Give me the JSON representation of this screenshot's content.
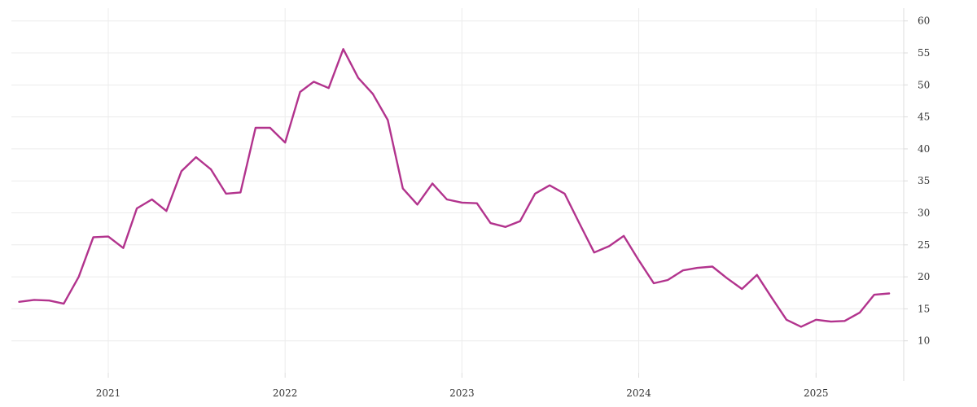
{
  "chart_data": {
    "type": "line",
    "title": "",
    "xlabel": "",
    "ylabel": "",
    "x_ticks": [
      "2021",
      "2022",
      "2023",
      "2024",
      "2025"
    ],
    "y_ticks": [
      10,
      15,
      20,
      25,
      30,
      35,
      40,
      45,
      50,
      55,
      60
    ],
    "ylim": [
      5,
      62
    ],
    "xlim": [
      "2020-06-15",
      "2025-07-01"
    ],
    "grid": true,
    "legend": "none",
    "colors": {
      "line": "#b2338d",
      "grid": "#ececec"
    },
    "series": [
      {
        "x": [
          "2020-07",
          "2020-08",
          "2020-09",
          "2020-10",
          "2020-11",
          "2020-12",
          "2021-01",
          "2021-02",
          "2021-03",
          "2021-04",
          "2021-05",
          "2021-06",
          "2021-07",
          "2021-08",
          "2021-09",
          "2021-10",
          "2021-11",
          "2021-12",
          "2022-01",
          "2022-02",
          "2022-03",
          "2022-04",
          "2022-05",
          "2022-06",
          "2022-07",
          "2022-08",
          "2022-09",
          "2022-10",
          "2022-11",
          "2022-12",
          "2023-01",
          "2023-02",
          "2023-03",
          "2023-04",
          "2023-05",
          "2023-06",
          "2023-07",
          "2023-08",
          "2023-09",
          "2023-10",
          "2023-11",
          "2023-12",
          "2024-01",
          "2024-02",
          "2024-03",
          "2024-04",
          "2024-05",
          "2024-06",
          "2024-07",
          "2024-08",
          "2024-09",
          "2024-10",
          "2024-11",
          "2024-12",
          "2025-01",
          "2025-02",
          "2025-03",
          "2025-04",
          "2025-05",
          "2025-06"
        ],
        "values": [
          16.1,
          16.4,
          16.3,
          15.8,
          20.0,
          26.2,
          26.3,
          24.5,
          30.7,
          32.1,
          30.3,
          36.5,
          38.7,
          36.8,
          33.0,
          33.2,
          43.3,
          43.3,
          41.0,
          48.9,
          50.5,
          49.5,
          55.6,
          51.1,
          48.6,
          44.5,
          33.8,
          31.3,
          34.6,
          32.1,
          31.6,
          31.5,
          28.4,
          27.8,
          28.7,
          33.0,
          34.3,
          33.0,
          28.3,
          23.8,
          24.8,
          26.4,
          22.6,
          19.0,
          19.5,
          21.0,
          21.4,
          21.6,
          19.8,
          18.1,
          20.3,
          16.8,
          13.3,
          12.2,
          13.3,
          13.0,
          13.1,
          14.4,
          17.2,
          17.4
        ]
      }
    ]
  }
}
